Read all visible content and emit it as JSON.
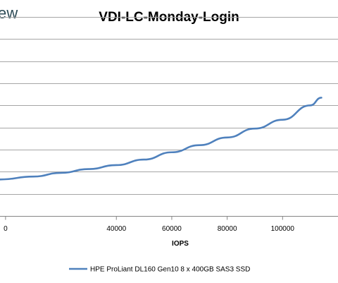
{
  "brand": {
    "logo_text": "ew"
  },
  "chart_data": {
    "type": "line",
    "title": "VDI-LC-Monday-Login",
    "xlabel": "IOPS",
    "ylabel": "",
    "xlim": [
      -2000,
      120000
    ],
    "ylim": [
      0,
      9
    ],
    "x_ticks": [
      0,
      40000,
      60000,
      80000,
      100000
    ],
    "x_tick_labels": [
      "0",
      "40000",
      "60000",
      "80000",
      "100000"
    ],
    "grid": true,
    "legend_position": "bottom",
    "colors": {
      "series": "#4f81bd",
      "grid": "#a6a6a6",
      "axis": "#868686"
    },
    "series": [
      {
        "name": "HPE ProLiant DL160 Gen10 8 x 400GB SAS3 SSD",
        "x": [
          -2000,
          10000,
          20000,
          30000,
          40000,
          50000,
          60000,
          70000,
          80000,
          90000,
          100000,
          110000,
          114000
        ],
        "y": [
          1.65,
          1.78,
          1.95,
          2.12,
          2.3,
          2.55,
          2.88,
          3.2,
          3.55,
          3.95,
          4.35,
          5.0,
          5.35
        ]
      }
    ]
  }
}
